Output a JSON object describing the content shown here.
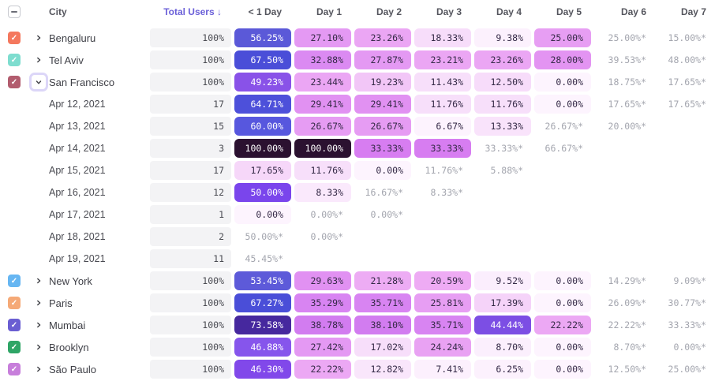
{
  "header": {
    "columns": [
      "City",
      "Total Users ↓",
      "< 1 Day",
      "Day 1",
      "Day 2",
      "Day 3",
      "Day 4",
      "Day 5",
      "Day 6",
      "Day 7"
    ],
    "sort_column": "Total Users",
    "sort_direction": "descending",
    "sort_accent_color": "#6a5fd8",
    "select_all_state": "indeterminate"
  },
  "rows": [
    {
      "type": "city",
      "name": "Bengaluru",
      "checked": true,
      "checkbox_color": "#f4785e",
      "expanded": false,
      "total": "100%",
      "cells": [
        {
          "t": "56.25%",
          "bg": "#5b59d8",
          "fg": "#ffffff"
        },
        {
          "t": "27.10%",
          "bg": "#e499f3"
        },
        {
          "t": "23.26%",
          "bg": "#eba6f4"
        },
        {
          "t": "18.33%",
          "bg": "#f7ddfa"
        },
        {
          "t": "9.38%",
          "bg": "#fcf1fd"
        },
        {
          "t": "25.00%",
          "bg": "#e79ef3"
        },
        {
          "t": "25.00%*",
          "muted": true
        },
        {
          "t": "15.00%*",
          "muted": true
        }
      ]
    },
    {
      "type": "city",
      "name": "Tel Aviv",
      "checked": true,
      "checkbox_color": "#7eddcf",
      "expanded": false,
      "total": "100%",
      "cells": [
        {
          "t": "67.50%",
          "bg": "#4a4ed8",
          "fg": "#ffffff"
        },
        {
          "t": "32.88%",
          "bg": "#db8af2"
        },
        {
          "t": "27.87%",
          "bg": "#e499f3"
        },
        {
          "t": "23.21%",
          "bg": "#eba6f4"
        },
        {
          "t": "23.26%",
          "bg": "#eba6f4"
        },
        {
          "t": "28.00%",
          "bg": "#e394f2"
        },
        {
          "t": "39.53%*",
          "muted": true
        },
        {
          "t": "48.00%*",
          "muted": true
        }
      ]
    },
    {
      "type": "city",
      "name": "San Francisco",
      "checked": true,
      "checkbox_color": "#b25c6e",
      "expanded": true,
      "chevron_focused": true,
      "total": "100%",
      "cells": [
        {
          "t": "49.23%",
          "bg": "#8952e8",
          "fg": "#ffffff"
        },
        {
          "t": "23.44%",
          "bg": "#eba6f4"
        },
        {
          "t": "19.23%",
          "bg": "#f2c6f7"
        },
        {
          "t": "11.43%",
          "bg": "#f7dffa"
        },
        {
          "t": "12.50%",
          "bg": "#f7dcfa"
        },
        {
          "t": "0.00%",
          "bg": "#fdf4fe"
        },
        {
          "t": "18.75%*",
          "muted": true
        },
        {
          "t": "17.65%*",
          "muted": true
        }
      ]
    },
    {
      "type": "date",
      "name": "Apr 12, 2021",
      "total": "17",
      "cells": [
        {
          "t": "64.71%",
          "bg": "#4d50da",
          "fg": "#ffffff"
        },
        {
          "t": "29.41%",
          "bg": "#e191f2"
        },
        {
          "t": "29.41%",
          "bg": "#e191f2"
        },
        {
          "t": "11.76%",
          "bg": "#f7dffa"
        },
        {
          "t": "11.76%",
          "bg": "#f7dffa"
        },
        {
          "t": "0.00%",
          "bg": "#fdf4fe"
        },
        {
          "t": "17.65%*",
          "muted": true
        },
        {
          "t": "17.65%*",
          "muted": true
        }
      ]
    },
    {
      "type": "date",
      "name": "Apr 13, 2021",
      "total": "15",
      "cells": [
        {
          "t": "60.00%",
          "bg": "#5757de",
          "fg": "#ffffff"
        },
        {
          "t": "26.67%",
          "bg": "#e69cf3"
        },
        {
          "t": "26.67%",
          "bg": "#e69cf3"
        },
        {
          "t": "6.67%",
          "bg": "#fdf3fe"
        },
        {
          "t": "13.33%",
          "bg": "#f9e3fb"
        },
        {
          "t": "26.67%*",
          "muted": true
        },
        {
          "t": "20.00%*",
          "muted": true
        },
        {
          "t": ""
        }
      ]
    },
    {
      "type": "date",
      "name": "Apr 14, 2021",
      "total": "3",
      "cells": [
        {
          "t": "100.00%",
          "bg": "#2b1130",
          "fg": "#ffffff"
        },
        {
          "t": "100.00%",
          "bg": "#2b1130",
          "fg": "#ffffff"
        },
        {
          "t": "33.33%",
          "bg": "#d77df1"
        },
        {
          "t": "33.33%",
          "bg": "#d77df1"
        },
        {
          "t": "33.33%*",
          "muted": true
        },
        {
          "t": "66.67%*",
          "muted": true
        },
        {
          "t": ""
        },
        {
          "t": ""
        }
      ]
    },
    {
      "type": "date",
      "name": "Apr 15, 2021",
      "total": "17",
      "cells": [
        {
          "t": "17.65%",
          "bg": "#f6d7f9"
        },
        {
          "t": "11.76%",
          "bg": "#f7dffa"
        },
        {
          "t": "0.00%",
          "bg": "#fdf4fe"
        },
        {
          "t": "11.76%*",
          "muted": true
        },
        {
          "t": "5.88%*",
          "muted": true
        },
        {
          "t": ""
        },
        {
          "t": ""
        },
        {
          "t": ""
        }
      ]
    },
    {
      "type": "date",
      "name": "Apr 16, 2021",
      "total": "12",
      "cells": [
        {
          "t": "50.00%",
          "bg": "#7a45ec",
          "fg": "#ffffff"
        },
        {
          "t": "8.33%",
          "bg": "#fae9fc"
        },
        {
          "t": "16.67%*",
          "muted": true
        },
        {
          "t": "8.33%*",
          "muted": true
        },
        {
          "t": ""
        },
        {
          "t": ""
        },
        {
          "t": ""
        },
        {
          "t": ""
        }
      ]
    },
    {
      "type": "date",
      "name": "Apr 17, 2021",
      "total": "1",
      "cells": [
        {
          "t": "0.00%",
          "bg": "#fdf4fe"
        },
        {
          "t": "0.00%*",
          "muted": true
        },
        {
          "t": "0.00%*",
          "muted": true
        },
        {
          "t": ""
        },
        {
          "t": ""
        },
        {
          "t": ""
        },
        {
          "t": ""
        },
        {
          "t": ""
        }
      ]
    },
    {
      "type": "date",
      "name": "Apr 18, 2021",
      "total": "2",
      "cells": [
        {
          "t": "50.00%*",
          "muted": true
        },
        {
          "t": "0.00%*",
          "muted": true
        },
        {
          "t": ""
        },
        {
          "t": ""
        },
        {
          "t": ""
        },
        {
          "t": ""
        },
        {
          "t": ""
        },
        {
          "t": ""
        }
      ]
    },
    {
      "type": "date",
      "name": "Apr 19, 2021",
      "total": "11",
      "cells": [
        {
          "t": "45.45%*",
          "muted": true
        },
        {
          "t": ""
        },
        {
          "t": ""
        },
        {
          "t": ""
        },
        {
          "t": ""
        },
        {
          "t": ""
        },
        {
          "t": ""
        },
        {
          "t": ""
        }
      ]
    },
    {
      "type": "city",
      "name": "New York",
      "checked": true,
      "checkbox_color": "#66b6f2",
      "expanded": false,
      "total": "100%",
      "cells": [
        {
          "t": "53.45%",
          "bg": "#5d5ad9",
          "fg": "#ffffff"
        },
        {
          "t": "29.63%",
          "bg": "#e191f2"
        },
        {
          "t": "21.28%",
          "bg": "#edacf4"
        },
        {
          "t": "20.59%",
          "bg": "#eeabf4"
        },
        {
          "t": "9.52%",
          "bg": "#fbeefd"
        },
        {
          "t": "0.00%",
          "bg": "#fdf4fe"
        },
        {
          "t": "14.29%*",
          "muted": true
        },
        {
          "t": "9.09%*",
          "muted": true
        }
      ]
    },
    {
      "type": "city",
      "name": "Paris",
      "checked": true,
      "checkbox_color": "#f5a977",
      "expanded": false,
      "total": "100%",
      "cells": [
        {
          "t": "67.27%",
          "bg": "#4a4ed8",
          "fg": "#ffffff"
        },
        {
          "t": "35.29%",
          "bg": "#d884f2"
        },
        {
          "t": "35.71%",
          "bg": "#d884f2"
        },
        {
          "t": "25.81%",
          "bg": "#e79ef3"
        },
        {
          "t": "17.39%",
          "bg": "#f5d3f9"
        },
        {
          "t": "0.00%",
          "bg": "#fdf4fe"
        },
        {
          "t": "26.09%*",
          "muted": true
        },
        {
          "t": "30.77%*",
          "muted": true
        }
      ]
    },
    {
      "type": "city",
      "name": "Mumbai",
      "checked": true,
      "checkbox_color": "#6a5ed2",
      "expanded": false,
      "total": "100%",
      "cells": [
        {
          "t": "73.58%",
          "bg": "#46289e",
          "fg": "#ffffff"
        },
        {
          "t": "38.78%",
          "bg": "#d27cf0"
        },
        {
          "t": "38.10%",
          "bg": "#d27cf0"
        },
        {
          "t": "35.71%",
          "bg": "#d884f2"
        },
        {
          "t": "44.44%",
          "bg": "#7c4ee4",
          "fg": "#ffffff"
        },
        {
          "t": "22.22%",
          "bg": "#eca8f4"
        },
        {
          "t": "22.22%*",
          "muted": true
        },
        {
          "t": "33.33%*",
          "muted": true
        }
      ]
    },
    {
      "type": "city",
      "name": "Brooklyn",
      "checked": true,
      "checkbox_color": "#2fa566",
      "expanded": false,
      "total": "100%",
      "cells": [
        {
          "t": "46.88%",
          "bg": "#8655ec",
          "fg": "#ffffff"
        },
        {
          "t": "27.42%",
          "bg": "#e499f3"
        },
        {
          "t": "17.02%",
          "bg": "#f7defa"
        },
        {
          "t": "24.24%",
          "bg": "#e9a2f3"
        },
        {
          "t": "8.70%",
          "bg": "#fbeffd"
        },
        {
          "t": "0.00%",
          "bg": "#fdf4fe"
        },
        {
          "t": "8.70%*",
          "muted": true
        },
        {
          "t": "0.00%*",
          "muted": true
        }
      ]
    },
    {
      "type": "city",
      "name": "São Paulo",
      "checked": true,
      "checkbox_color": "#c77edb",
      "expanded": false,
      "total": "100%",
      "cells": [
        {
          "t": "46.30%",
          "bg": "#8148ea",
          "fg": "#ffffff"
        },
        {
          "t": "22.22%",
          "bg": "#eca8f4"
        },
        {
          "t": "12.82%",
          "bg": "#f9e6fb"
        },
        {
          "t": "7.41%",
          "bg": "#fcf0fd"
        },
        {
          "t": "6.25%",
          "bg": "#fcf1fd"
        },
        {
          "t": "0.00%",
          "bg": "#fdf4fe"
        },
        {
          "t": "12.50%*",
          "muted": true
        },
        {
          "t": "25.00%*",
          "muted": true
        }
      ]
    }
  ]
}
